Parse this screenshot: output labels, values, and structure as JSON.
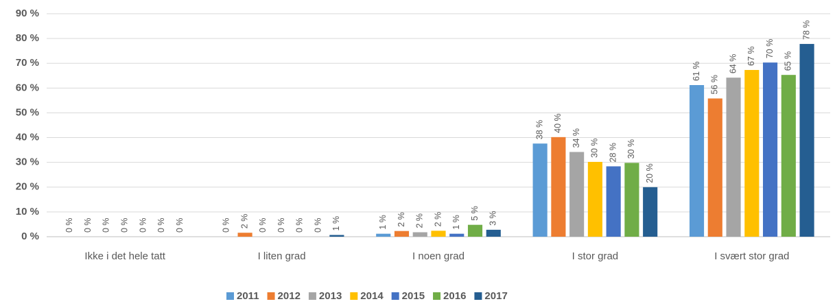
{
  "chart_data": {
    "type": "bar",
    "categories": [
      "Ikke i det hele tatt",
      "I liten grad",
      "I noen grad",
      "I stor grad",
      "I svært stor grad"
    ],
    "series": [
      {
        "name": "2011",
        "color": "#5b9bd5",
        "values": [
          0,
          0,
          1.2,
          37.6,
          61.2
        ],
        "value_labels": [
          "0 %",
          "0 %",
          "1 %",
          "38 %",
          "61 %"
        ]
      },
      {
        "name": "2012",
        "color": "#ed7d31",
        "values": [
          0,
          1.6,
          2.3,
          40.2,
          55.8
        ],
        "value_labels": [
          "0 %",
          "2 %",
          "2 %",
          "40 %",
          "56 %"
        ]
      },
      {
        "name": "2013",
        "color": "#a5a5a5",
        "values": [
          0,
          0,
          1.8,
          34.2,
          64.2
        ],
        "value_labels": [
          "0 %",
          "0 %",
          "2 %",
          "34 %",
          "64 %"
        ]
      },
      {
        "name": "2014",
        "color": "#ffc000",
        "values": [
          0,
          0,
          2.4,
          30.2,
          67.3
        ],
        "value_labels": [
          "0 %",
          "0 %",
          "2 %",
          "30 %",
          "67 %"
        ]
      },
      {
        "name": "2015",
        "color": "#4472c4",
        "values": [
          0,
          0,
          1.2,
          28.4,
          70.3
        ],
        "value_labels": [
          "0 %",
          "0 %",
          "1 %",
          "28 %",
          "70 %"
        ]
      },
      {
        "name": "2016",
        "color": "#70ad47",
        "values": [
          0,
          0,
          4.8,
          29.8,
          65.3
        ],
        "value_labels": [
          "0 %",
          "0 %",
          "5 %",
          "30 %",
          "65 %"
        ]
      },
      {
        "name": "2017",
        "color": "#255e91",
        "values": [
          0,
          0.7,
          2.8,
          20.0,
          77.8
        ],
        "value_labels": [
          "0 %",
          "1 %",
          "3 %",
          "20 %",
          "78 %"
        ]
      }
    ],
    "ylim": [
      0,
      90
    ],
    "yticks": [
      {
        "value": 0,
        "label": "0 %"
      },
      {
        "value": 10,
        "label": "10 %"
      },
      {
        "value": 20,
        "label": "20 %"
      },
      {
        "value": 30,
        "label": "30 %"
      },
      {
        "value": 40,
        "label": "40 %"
      },
      {
        "value": 50,
        "label": "50 %"
      },
      {
        "value": 60,
        "label": "60 %"
      },
      {
        "value": 70,
        "label": "70 %"
      },
      {
        "value": 80,
        "label": "80 %"
      },
      {
        "value": 90,
        "label": "90 %"
      }
    ],
    "grid": true,
    "legend": "bottom"
  }
}
